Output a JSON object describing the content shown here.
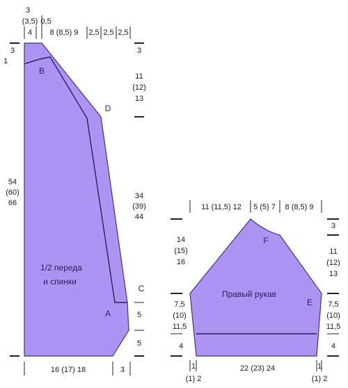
{
  "front_back": {
    "caption": [
      "1/2 переда",
      "и спинки"
    ],
    "points": [
      "A",
      "B",
      "C",
      "D"
    ],
    "top": [
      "3",
      "(3,5)",
      "0,5",
      "4",
      "8 (8,5) 9",
      "2,5",
      "2,5",
      "2,5"
    ],
    "left": [
      "3",
      "1",
      "54",
      "(60)",
      "66"
    ],
    "right": [
      "3",
      "11",
      "(12)",
      "13",
      "34",
      "(39)",
      "44",
      "5",
      "5"
    ],
    "bottom": [
      "16 (17) 18",
      "3"
    ]
  },
  "sleeve": {
    "caption": "Правый рукав",
    "points": [
      "F",
      "E"
    ],
    "top": [
      "11 (11,5) 12",
      "5 (5) 7",
      "8 (8,5) 9"
    ],
    "left": [
      "14",
      "(15)",
      "16",
      "7,5",
      "(10)",
      "11,5",
      "4"
    ],
    "right": [
      "3",
      "11",
      "(12)",
      "13",
      "7,5",
      "(10)",
      "11,5",
      "4"
    ],
    "bottom": [
      "1",
      "(1) 2",
      "22 (23) 24",
      "1",
      "(1) 2"
    ]
  }
}
